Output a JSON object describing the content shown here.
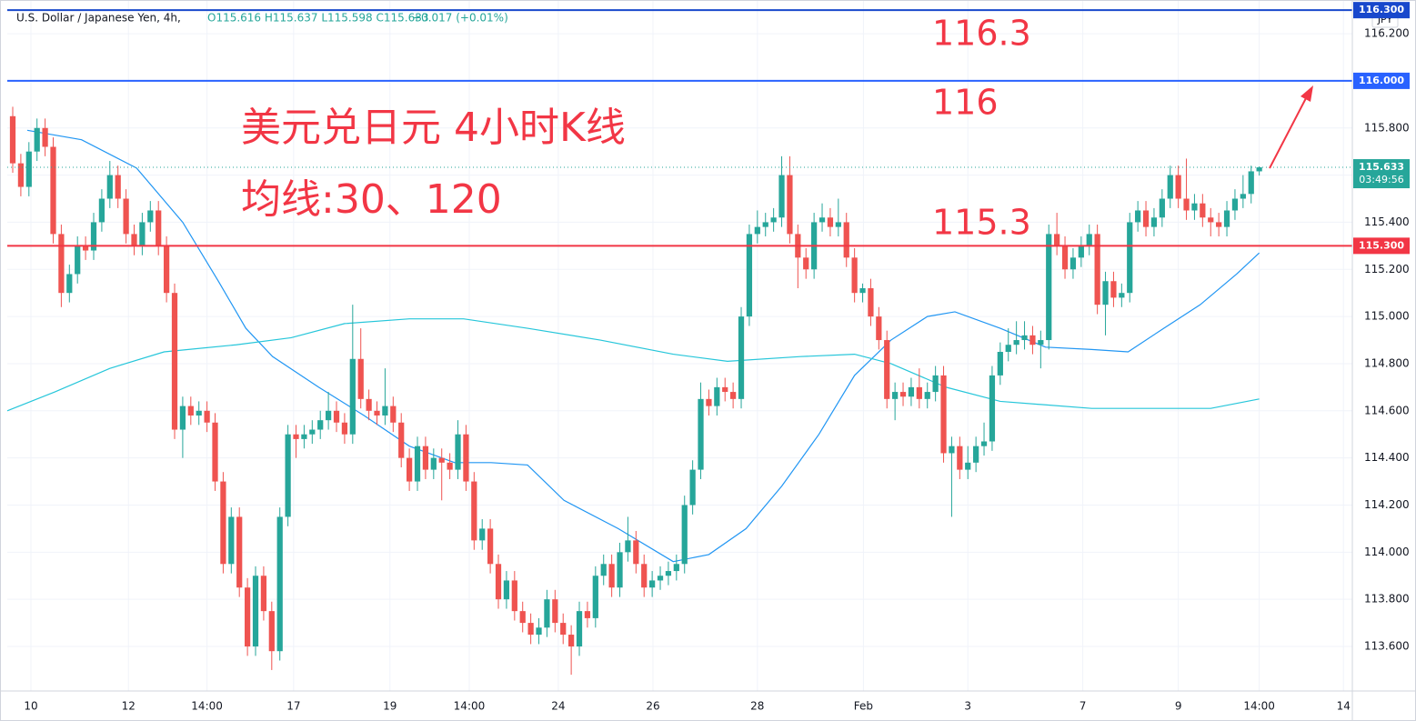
{
  "chart_data": {
    "type": "candlestick",
    "header": {
      "symbol": "U.S. Dollar / Japanese Yen, 4h,",
      "ohlc": "O115.616 H115.637 L115.598 C115.633",
      "change": "+0.017 (+0.01%)"
    },
    "currency": "JPY",
    "annotations": {
      "title": "美元兑日元 4小时K线",
      "subtitle": "均线:30、120",
      "level_1": "116.3",
      "level_2": "116",
      "level_3": "115.3"
    },
    "up_color": "#26a69a",
    "down_color": "#ef5350",
    "xlim": [
      -0.674,
      165.5
    ],
    "ylim": [
      113.411,
      116.343
    ],
    "grid": true,
    "xticks": [
      {
        "value": 2.25,
        "label": "10"
      },
      {
        "value": 14.3,
        "label": "12"
      },
      {
        "value": 24,
        "label": "14:00"
      },
      {
        "value": 34.7,
        "label": "17"
      },
      {
        "value": 46.6,
        "label": "19"
      },
      {
        "value": 56.4,
        "label": "14:00"
      },
      {
        "value": 67.4,
        "label": "24"
      },
      {
        "value": 79.1,
        "label": "26"
      },
      {
        "value": 92,
        "label": "28"
      },
      {
        "value": 105.1,
        "label": "Feb"
      },
      {
        "value": 118,
        "label": "3"
      },
      {
        "value": 132.2,
        "label": "7"
      },
      {
        "value": 144,
        "label": "9"
      },
      {
        "value": 154,
        "label": "14:00"
      },
      {
        "value": 164.4,
        "label": "14"
      }
    ],
    "yticks": [
      {
        "value": 113.6,
        "label": "113.600"
      },
      {
        "value": 113.8,
        "label": "113.800"
      },
      {
        "value": 114.0,
        "label": "114.000"
      },
      {
        "value": 114.2,
        "label": "114.200"
      },
      {
        "value": 114.4,
        "label": "114.400"
      },
      {
        "value": 114.6,
        "label": "114.600"
      },
      {
        "value": 114.8,
        "label": "114.800"
      },
      {
        "value": 115.0,
        "label": "115.000"
      },
      {
        "value": 115.2,
        "label": "115.200"
      },
      {
        "value": 115.4,
        "label": "115.400"
      },
      {
        "value": 115.6,
        "label": "115.600"
      },
      {
        "value": 115.8,
        "label": "115.800"
      },
      {
        "value": 116.0,
        "label": "116.000"
      },
      {
        "value": 116.2,
        "label": "116.200"
      }
    ],
    "hlines": [
      {
        "value": 116.3,
        "label": "116.300",
        "color": "#1848cc"
      },
      {
        "value": 116.0,
        "label": "116.000",
        "color": "#2962ff"
      },
      {
        "value": 115.3,
        "label": "115.300",
        "color": "#f23645"
      }
    ],
    "last_price": {
      "value": 115.633,
      "countdown": "03:49:56",
      "color": "#26a69a"
    },
    "candles": [
      [
        115.85,
        115.89,
        115.61,
        115.65
      ],
      [
        115.65,
        115.69,
        115.51,
        115.55
      ],
      [
        115.55,
        115.74,
        115.51,
        115.7
      ],
      [
        115.7,
        115.84,
        115.66,
        115.8
      ],
      [
        115.8,
        115.84,
        115.68,
        115.72
      ],
      [
        115.72,
        115.76,
        115.31,
        115.35
      ],
      [
        115.35,
        115.39,
        115.04,
        115.1
      ],
      [
        115.1,
        115.22,
        115.06,
        115.18
      ],
      [
        115.18,
        115.34,
        115.14,
        115.3
      ],
      [
        115.3,
        115.34,
        115.24,
        115.28
      ],
      [
        115.28,
        115.44,
        115.24,
        115.4
      ],
      [
        115.4,
        115.54,
        115.36,
        115.5
      ],
      [
        115.5,
        115.66,
        115.46,
        115.6
      ],
      [
        115.6,
        115.64,
        115.46,
        115.5
      ],
      [
        115.5,
        115.54,
        115.31,
        115.35
      ],
      [
        115.35,
        115.39,
        115.26,
        115.3
      ],
      [
        115.3,
        115.44,
        115.26,
        115.4
      ],
      [
        115.4,
        115.49,
        115.36,
        115.45
      ],
      [
        115.45,
        115.49,
        115.26,
        115.3
      ],
      [
        115.3,
        115.34,
        115.06,
        115.1
      ],
      [
        115.1,
        115.14,
        114.48,
        114.52
      ],
      [
        114.52,
        114.66,
        114.4,
        114.62
      ],
      [
        114.62,
        114.66,
        114.54,
        114.58
      ],
      [
        114.58,
        114.64,
        114.54,
        114.6
      ],
      [
        114.6,
        114.64,
        114.51,
        114.55
      ],
      [
        114.55,
        114.59,
        114.26,
        114.3
      ],
      [
        114.3,
        114.34,
        113.91,
        113.95
      ],
      [
        113.95,
        114.19,
        113.91,
        114.15
      ],
      [
        114.15,
        114.19,
        113.81,
        113.85
      ],
      [
        113.85,
        113.89,
        113.56,
        113.6
      ],
      [
        113.6,
        113.94,
        113.56,
        113.9
      ],
      [
        113.9,
        113.94,
        113.71,
        113.75
      ],
      [
        113.75,
        113.79,
        113.5,
        113.58
      ],
      [
        113.58,
        114.19,
        113.54,
        114.15
      ],
      [
        114.15,
        114.54,
        114.11,
        114.5
      ],
      [
        114.5,
        114.54,
        114.4,
        114.48
      ],
      [
        114.48,
        114.54,
        114.44,
        114.5
      ],
      [
        114.5,
        114.56,
        114.46,
        114.52
      ],
      [
        114.52,
        114.6,
        114.48,
        114.56
      ],
      [
        114.56,
        114.68,
        114.52,
        114.6
      ],
      [
        114.6,
        114.64,
        114.51,
        114.55
      ],
      [
        114.55,
        114.59,
        114.46,
        114.5
      ],
      [
        114.5,
        115.05,
        114.46,
        114.82
      ],
      [
        114.82,
        114.95,
        114.61,
        114.65
      ],
      [
        114.65,
        114.69,
        114.56,
        114.6
      ],
      [
        114.6,
        114.64,
        114.54,
        114.58
      ],
      [
        114.58,
        114.78,
        114.54,
        114.62
      ],
      [
        114.62,
        114.66,
        114.51,
        114.55
      ],
      [
        114.55,
        114.59,
        114.36,
        114.4
      ],
      [
        114.4,
        114.44,
        114.26,
        114.3
      ],
      [
        114.3,
        114.49,
        114.26,
        114.45
      ],
      [
        114.45,
        114.49,
        114.31,
        114.35
      ],
      [
        114.35,
        114.44,
        114.31,
        114.4
      ],
      [
        114.4,
        114.44,
        114.22,
        114.38
      ],
      [
        114.38,
        114.42,
        114.31,
        114.35
      ],
      [
        114.35,
        114.56,
        114.31,
        114.5
      ],
      [
        114.5,
        114.54,
        114.26,
        114.3
      ],
      [
        114.3,
        114.34,
        114.01,
        114.05
      ],
      [
        114.05,
        114.14,
        114.01,
        114.1
      ],
      [
        114.1,
        114.14,
        113.91,
        113.95
      ],
      [
        113.95,
        113.99,
        113.76,
        113.8
      ],
      [
        113.8,
        113.92,
        113.76,
        113.88
      ],
      [
        113.88,
        113.92,
        113.71,
        113.75
      ],
      [
        113.75,
        113.79,
        113.66,
        113.7
      ],
      [
        113.7,
        113.74,
        113.61,
        113.65
      ],
      [
        113.65,
        113.72,
        113.61,
        113.68
      ],
      [
        113.68,
        113.84,
        113.64,
        113.8
      ],
      [
        113.8,
        113.84,
        113.66,
        113.7
      ],
      [
        113.7,
        113.74,
        113.61,
        113.65
      ],
      [
        113.65,
        113.69,
        113.48,
        113.6
      ],
      [
        113.6,
        113.79,
        113.56,
        113.75
      ],
      [
        113.75,
        113.79,
        113.68,
        113.72
      ],
      [
        113.72,
        113.94,
        113.68,
        113.9
      ],
      [
        113.9,
        113.99,
        113.86,
        113.95
      ],
      [
        113.95,
        113.99,
        113.81,
        113.85
      ],
      [
        113.85,
        114.04,
        113.81,
        114.0
      ],
      [
        114.0,
        114.15,
        113.96,
        114.05
      ],
      [
        114.05,
        114.09,
        113.91,
        113.95
      ],
      [
        113.95,
        113.99,
        113.81,
        113.85
      ],
      [
        113.85,
        113.92,
        113.81,
        113.88
      ],
      [
        113.88,
        113.94,
        113.84,
        113.9
      ],
      [
        113.9,
        113.96,
        113.86,
        113.92
      ],
      [
        113.92,
        113.99,
        113.88,
        113.95
      ],
      [
        113.95,
        114.24,
        113.91,
        114.2
      ],
      [
        114.2,
        114.39,
        114.16,
        114.35
      ],
      [
        114.35,
        114.72,
        114.31,
        114.65
      ],
      [
        114.65,
        114.69,
        114.58,
        114.62
      ],
      [
        114.62,
        114.74,
        114.58,
        114.7
      ],
      [
        114.7,
        114.74,
        114.64,
        114.68
      ],
      [
        114.68,
        114.72,
        114.61,
        114.65
      ],
      [
        114.65,
        115.04,
        114.61,
        115.0
      ],
      [
        115.0,
        115.39,
        114.96,
        115.35
      ],
      [
        115.35,
        115.45,
        115.31,
        115.38
      ],
      [
        115.38,
        115.44,
        115.34,
        115.4
      ],
      [
        115.4,
        115.46,
        115.36,
        115.42
      ],
      [
        115.42,
        115.68,
        115.38,
        115.6
      ],
      [
        115.6,
        115.68,
        115.31,
        115.35
      ],
      [
        115.35,
        115.39,
        115.12,
        115.25
      ],
      [
        115.25,
        115.29,
        115.16,
        115.2
      ],
      [
        115.2,
        115.44,
        115.16,
        115.4
      ],
      [
        115.4,
        115.48,
        115.36,
        115.42
      ],
      [
        115.42,
        115.46,
        115.34,
        115.38
      ],
      [
        115.38,
        115.5,
        115.34,
        115.4
      ],
      [
        115.4,
        115.44,
        115.21,
        115.25
      ],
      [
        115.25,
        115.29,
        115.06,
        115.1
      ],
      [
        115.1,
        115.14,
        115.06,
        115.12
      ],
      [
        115.12,
        115.16,
        114.96,
        115.0
      ],
      [
        115.0,
        115.04,
        114.86,
        114.9
      ],
      [
        114.9,
        114.94,
        114.61,
        114.65
      ],
      [
        114.65,
        114.72,
        114.56,
        114.68
      ],
      [
        114.68,
        114.72,
        114.62,
        114.66
      ],
      [
        114.66,
        114.74,
        114.62,
        114.7
      ],
      [
        114.7,
        114.78,
        114.61,
        114.65
      ],
      [
        114.65,
        114.72,
        114.61,
        114.68
      ],
      [
        114.68,
        114.79,
        114.64,
        114.75
      ],
      [
        114.75,
        114.79,
        114.38,
        114.42
      ],
      [
        114.42,
        114.49,
        114.15,
        114.45
      ],
      [
        114.45,
        114.49,
        114.31,
        114.35
      ],
      [
        114.35,
        114.45,
        114.31,
        114.38
      ],
      [
        114.38,
        114.49,
        114.34,
        114.45
      ],
      [
        114.45,
        114.55,
        114.41,
        114.47
      ],
      [
        114.47,
        114.79,
        114.43,
        114.75
      ],
      [
        114.75,
        114.89,
        114.71,
        114.85
      ],
      [
        114.85,
        114.95,
        114.81,
        114.88
      ],
      [
        114.88,
        114.98,
        114.84,
        114.9
      ],
      [
        114.9,
        114.98,
        114.86,
        114.92
      ],
      [
        114.92,
        114.96,
        114.84,
        114.88
      ],
      [
        114.88,
        114.94,
        114.78,
        114.9
      ],
      [
        114.9,
        115.39,
        114.86,
        115.35
      ],
      [
        115.35,
        115.44,
        115.26,
        115.3
      ],
      [
        115.3,
        115.34,
        115.16,
        115.2
      ],
      [
        115.2,
        115.29,
        115.16,
        115.25
      ],
      [
        115.25,
        115.34,
        115.21,
        115.3
      ],
      [
        115.3,
        115.39,
        115.26,
        115.35
      ],
      [
        115.35,
        115.39,
        115.01,
        115.05
      ],
      [
        115.05,
        115.19,
        114.92,
        115.15
      ],
      [
        115.15,
        115.19,
        115.04,
        115.08
      ],
      [
        115.08,
        115.14,
        115.04,
        115.1
      ],
      [
        115.1,
        115.44,
        115.06,
        115.4
      ],
      [
        115.4,
        115.49,
        115.36,
        115.45
      ],
      [
        115.45,
        115.49,
        115.34,
        115.38
      ],
      [
        115.38,
        115.46,
        115.34,
        115.42
      ],
      [
        115.42,
        115.54,
        115.38,
        115.5
      ],
      [
        115.5,
        115.64,
        115.46,
        115.6
      ],
      [
        115.6,
        115.64,
        115.46,
        115.5
      ],
      [
        115.5,
        115.67,
        115.41,
        115.45
      ],
      [
        115.45,
        115.52,
        115.41,
        115.48
      ],
      [
        115.48,
        115.52,
        115.38,
        115.42
      ],
      [
        115.42,
        115.46,
        115.34,
        115.4
      ],
      [
        115.4,
        115.44,
        115.34,
        115.38
      ],
      [
        115.38,
        115.49,
        115.34,
        115.45
      ],
      [
        115.45,
        115.54,
        115.41,
        115.5
      ],
      [
        115.5,
        115.6,
        115.46,
        115.52
      ],
      [
        115.52,
        115.64,
        115.48,
        115.616
      ],
      [
        115.616,
        115.637,
        115.598,
        115.633
      ]
    ],
    "ma_lines": [
      {
        "color": "#2196f3",
        "x": [
          1.8,
          8.5,
          15.3,
          21,
          25.4,
          28.8,
          32.1,
          37.8,
          43.4,
          49,
          54.6,
          59.1,
          63.6,
          68.1,
          74.8,
          81.6,
          86,
          90.6,
          95,
          99.6,
          104,
          108.5,
          113,
          116.4,
          122,
          127.6,
          133.3,
          137.8,
          142.2,
          146.7,
          151.2,
          154
        ],
        "values": [
          115.79,
          115.75,
          115.63,
          115.4,
          115.15,
          114.95,
          114.83,
          114.7,
          114.58,
          114.45,
          114.38,
          114.38,
          114.37,
          114.22,
          114.1,
          113.96,
          113.99,
          114.1,
          114.28,
          114.5,
          114.75,
          114.9,
          115.0,
          115.02,
          114.95,
          114.87,
          114.86,
          114.85,
          114.95,
          115.05,
          115.18,
          115.27
        ]
      },
      {
        "color": "#26c6da",
        "x": [
          -0.674,
          5.2,
          12,
          18.7,
          27.6,
          34.4,
          41,
          49,
          55.7,
          63.6,
          72.6,
          81.6,
          88.3,
          97.3,
          104,
          108.5,
          115.3,
          122,
          133.3,
          148,
          154
        ],
        "values": [
          114.6,
          114.68,
          114.78,
          114.85,
          114.88,
          114.91,
          114.97,
          114.99,
          114.99,
          114.95,
          114.9,
          114.84,
          114.81,
          114.83,
          114.84,
          114.8,
          114.7,
          114.64,
          114.61,
          114.61,
          114.65
        ]
      }
    ]
  }
}
